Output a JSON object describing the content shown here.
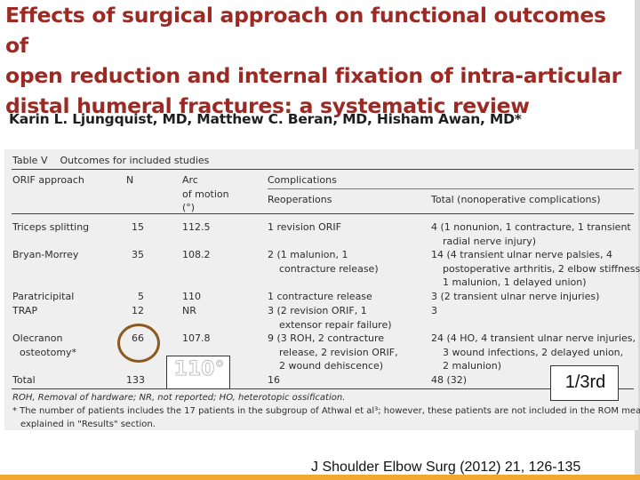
{
  "paper": {
    "title_lines": [
      "Effects of surgical approach on functional outcomes of",
      "open reduction and internal fixation of intra-articular",
      "distal humeral fractures: a systematic review"
    ],
    "authors": "Karin L. Ljungquist, MD, Matthew C. Beran, MD, Hisham Awan, MD*"
  },
  "table": {
    "label": "Table V",
    "caption": "Outcomes for included studies",
    "headers": {
      "approach": "ORIF approach",
      "n": "N",
      "arc_lines": [
        "Arc",
        "of motion",
        "(°)"
      ],
      "complications": "Complications",
      "reoperations": "Reoperations",
      "total": "Total (nonoperative complications)"
    },
    "rows": [
      {
        "approach": [
          "Triceps splitting"
        ],
        "n": "15",
        "arc": "112.5",
        "reop": [
          "1 revision ORIF"
        ],
        "total": [
          "4 (1 nonunion, 1 contracture, 1 transient",
          "radial nerve injury)"
        ]
      },
      {
        "approach": [
          "Bryan-Morrey"
        ],
        "n": "35",
        "arc": "108.2",
        "reop": [
          "2 (1 malunion, 1",
          "contracture release)"
        ],
        "total": [
          "14 (4 transient ulnar nerve palsies, 4",
          "postoperative arthritis, 2 elbow stiffness,",
          "1 malunion, 1 delayed union)"
        ]
      },
      {
        "approach": [
          "Paratricipital"
        ],
        "n": "5",
        "arc": "110",
        "reop": [
          "1 contracture release"
        ],
        "total": [
          "3 (2 transient ulnar nerve injuries)"
        ]
      },
      {
        "approach": [
          "TRAP"
        ],
        "n": "12",
        "arc": "NR",
        "reop": [
          "3 (2 revision ORIF, 1",
          "extensor repair failure)"
        ],
        "total": [
          "3"
        ]
      },
      {
        "approach": [
          "Olecranon",
          "osteotomy*"
        ],
        "n": "66",
        "arc": "107.8",
        "reop": [
          "9 (3 ROH, 2 contracture",
          "release, 2 revision ORIF,",
          "2 wound dehiscence)"
        ],
        "total": [
          "24 (4 HO, 4 transient ulnar nerve injuries,",
          "3 wound infections, 2 delayed union,",
          "2 malunion)"
        ]
      }
    ],
    "total_row": {
      "label": "Total",
      "n": "133",
      "reop": "16",
      "total": "48 (32)"
    },
    "footnotes": [
      "ROH, Removal of hardware; NR, not reported; HO, heterotopic ossification.",
      "* The number of patients includes the 17 patients in the subgroup of Athwal et al³; however, these patients are not included in the ROM mean, as",
      "explained in \"Results\" section."
    ]
  },
  "overlays": {
    "angle_label": "110°",
    "fraction_label": "1/3rd"
  },
  "citation": "J Shoulder Elbow Surg (2012) 21, 126-135",
  "colors": {
    "title": "#9b2a24",
    "circle": "#8a5a1e",
    "bottom_bar": "#f2a830"
  }
}
